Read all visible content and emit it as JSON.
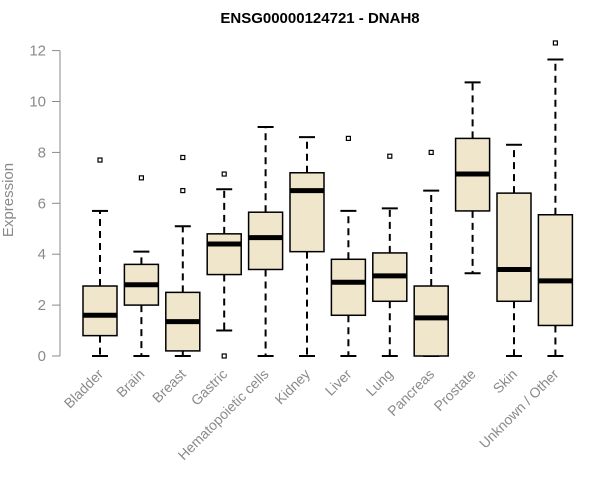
{
  "chart_data": {
    "type": "boxplot",
    "title": "ENSG00000124721 - DNAH8",
    "ylabel": "Expression",
    "xlabel": "",
    "ylim": [
      0,
      12.3
    ],
    "yticks": [
      0,
      2,
      4,
      6,
      8,
      10,
      12
    ],
    "colors": {
      "box_fill": "#efe6cc",
      "stroke": "#000000",
      "axis": "#8a8a8a",
      "label": "#8a8a8a"
    },
    "categories": [
      "Bladder",
      "Brain",
      "Breast",
      "Gastric",
      "Hematopoietic cells",
      "Kidney",
      "Liver",
      "Lung",
      "Pancreas",
      "Prostate",
      "Skin",
      "Unknown / Other"
    ],
    "boxes": [
      {
        "name": "Bladder",
        "min": 0.0,
        "q1": 0.8,
        "median": 1.6,
        "q3": 2.75,
        "max": 5.7,
        "outliers": [
          7.7
        ]
      },
      {
        "name": "Brain",
        "min": 0.0,
        "q1": 2.0,
        "median": 2.8,
        "q3": 3.6,
        "max": 4.1,
        "outliers": [
          7.0
        ]
      },
      {
        "name": "Breast",
        "min": 0.0,
        "q1": 0.2,
        "median": 1.35,
        "q3": 2.5,
        "max": 5.1,
        "outliers": [
          6.5,
          7.8
        ]
      },
      {
        "name": "Gastric",
        "min": 1.0,
        "q1": 3.2,
        "median": 4.4,
        "q3": 4.8,
        "max": 6.55,
        "outliers": [
          7.15,
          0.0
        ]
      },
      {
        "name": "Hematopoietic cells",
        "min": 0.0,
        "q1": 3.4,
        "median": 4.65,
        "q3": 5.65,
        "max": 9.0,
        "outliers": []
      },
      {
        "name": "Kidney",
        "min": 0.0,
        "q1": 4.1,
        "median": 6.5,
        "q3": 7.2,
        "max": 8.6,
        "outliers": []
      },
      {
        "name": "Liver",
        "min": 0.0,
        "q1": 1.6,
        "median": 2.9,
        "q3": 3.8,
        "max": 5.7,
        "outliers": [
          8.55
        ]
      },
      {
        "name": "Lung",
        "min": 0.0,
        "q1": 2.15,
        "median": 3.15,
        "q3": 4.05,
        "max": 5.8,
        "outliers": [
          7.85
        ]
      },
      {
        "name": "Pancreas",
        "min": 0.0,
        "q1": 0.0,
        "median": 1.5,
        "q3": 2.75,
        "max": 6.5,
        "outliers": [
          8.0
        ]
      },
      {
        "name": "Prostate",
        "min": 3.25,
        "q1": 5.7,
        "median": 7.15,
        "q3": 8.55,
        "max": 10.75,
        "outliers": []
      },
      {
        "name": "Skin",
        "min": 0.0,
        "q1": 2.15,
        "median": 3.4,
        "q3": 6.4,
        "max": 8.3,
        "outliers": []
      },
      {
        "name": "Unknown / Other",
        "min": 0.0,
        "q1": 1.2,
        "median": 2.95,
        "q3": 5.55,
        "max": 11.65,
        "outliers": [
          12.3
        ]
      }
    ]
  }
}
